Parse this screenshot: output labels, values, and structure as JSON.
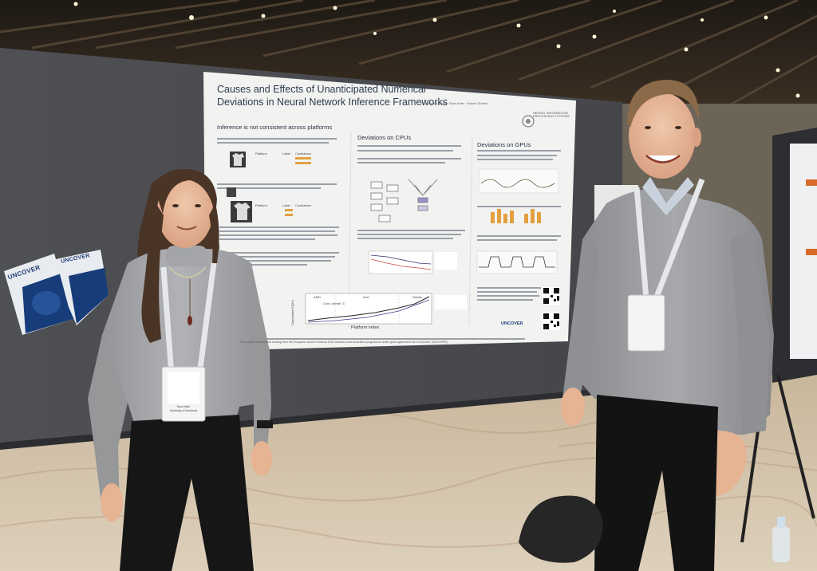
{
  "poster": {
    "title_line1": "Causes and Effects of Unanticipated Numerical",
    "title_line2": "Deviations in Neural Network Inference Frameworks",
    "authors": "Alexander Schlögl · Nora Hofer · Rainer Böhme",
    "logo_text": "NEURAL INFORMATION PROCESSING SYSTEMS",
    "section1_heading": "Inference is not consistent across platforms",
    "section2_heading": "Deviations on CPUs",
    "section3_heading": "Deviations on GPUs",
    "table_header_platform": "Platform",
    "table_header_label": "Label",
    "table_header_confidence": "Confidence",
    "chart_axis_x": "Platform index",
    "chart_axis_y": "Cumulative EQCs",
    "chart_label_amd": "AMD",
    "chart_label_intel": "Intel",
    "chart_label_nvidia": "NVidia",
    "chart_annotation": "Conv. kernel: 3",
    "sponsor_logo": "UNCOVER",
    "footer_text": "This project has received funding from the European Union's Horizon 2020 research and innovation programme under grant agreement No 101021687 (UNCOVER)"
  },
  "brochures": {
    "logo": "UNCOVER"
  },
  "badges": {
    "left_name": "Nora Hofer",
    "left_affiliation": "University of Innsbruck"
  },
  "colors": {
    "ceiling": "#2a2219",
    "board": "#4a4c50",
    "poster": "#f2f3f1",
    "floor": "#d7c7ae",
    "sweater": "#9d9fa2",
    "accent_orange": "#e2a040",
    "title_blue": "#2c3a4c"
  }
}
